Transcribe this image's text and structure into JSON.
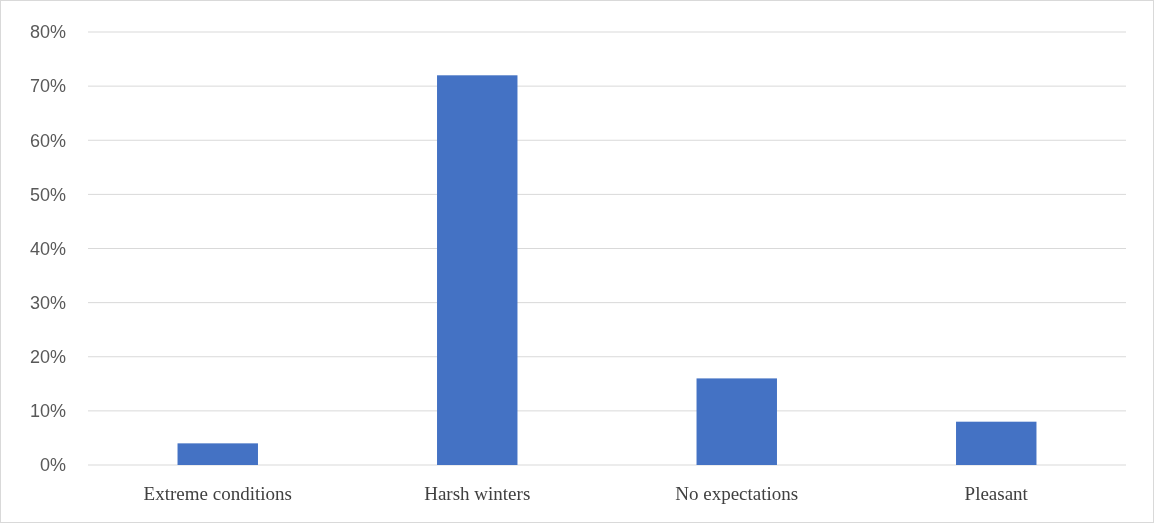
{
  "chart_data": {
    "type": "bar",
    "categories": [
      "Extreme conditions",
      "Harsh winters",
      "No expectations",
      "Pleasant"
    ],
    "values": [
      4,
      72,
      16,
      8
    ],
    "color": "#4472c4",
    "ylim": [
      0,
      80
    ],
    "yticks": [
      {
        "value": 0,
        "label": "0%"
      },
      {
        "value": 10,
        "label": "10%"
      },
      {
        "value": 20,
        "label": "20%"
      },
      {
        "value": 30,
        "label": "30%"
      },
      {
        "value": 40,
        "label": "40%"
      },
      {
        "value": 50,
        "label": "50%"
      },
      {
        "value": 60,
        "label": "60%"
      },
      {
        "value": 70,
        "label": "70%"
      },
      {
        "value": 80,
        "label": "80%"
      }
    ],
    "grid": "y"
  }
}
